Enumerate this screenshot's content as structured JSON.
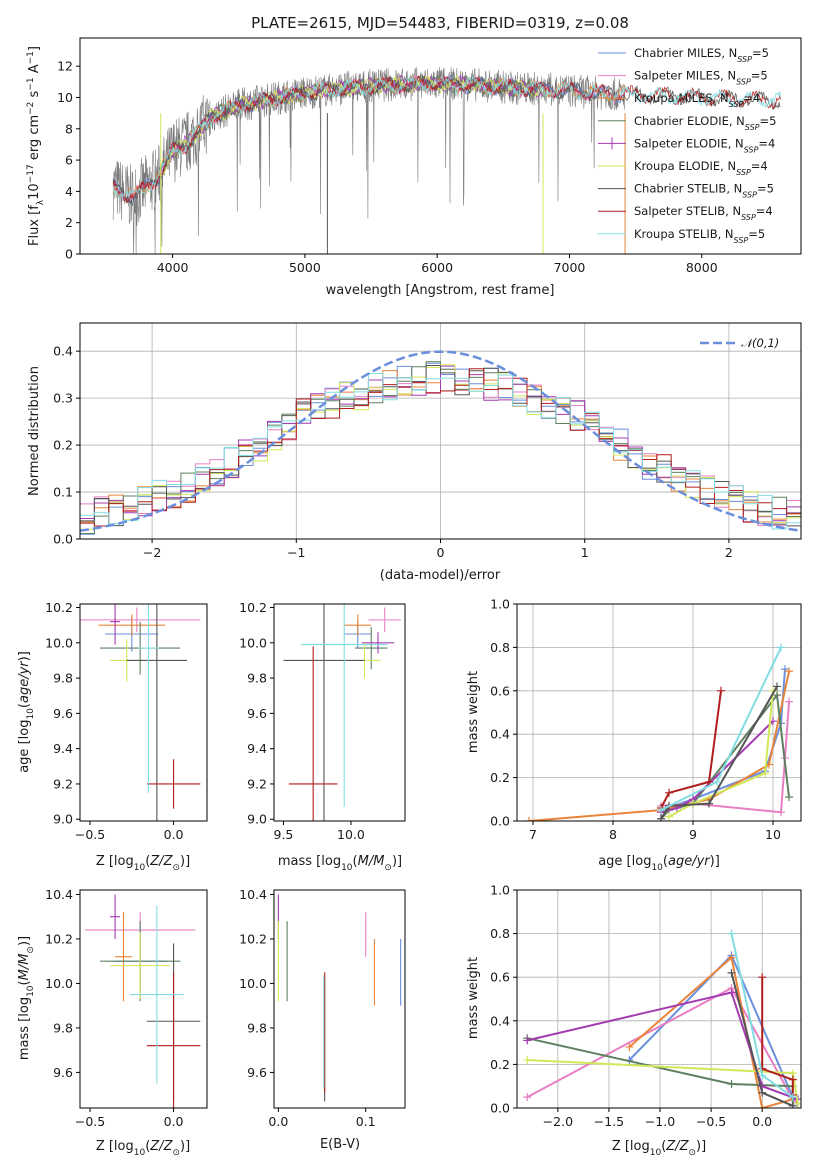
{
  "figure_title": "PLATE=2615, MJD=54483, FIBERID=0319, z=0.08",
  "colors": {
    "Chabrier MILES": "#6a8fdc",
    "Salpeter MILES": "#e87fc4",
    "Kroupa MILES": "#e8853a",
    "Chabrier ELODIE": "#5e8060",
    "Salpeter ELODIE": "#a43bb0",
    "Kroupa ELODIE": "#d2e85a",
    "Chabrier STELIB": "#555555",
    "Salpeter STELIB": "#b01e1e",
    "Kroupa STELIB": "#82dde2",
    "normal": "#6a8fdc"
  },
  "chart_data": [
    {
      "type": "line",
      "title": "PLATE=2615, MJD=54483, FIBERID=0319, z=0.08",
      "xlabel": "wavelength [Angstrom, rest frame]",
      "ylabel": "Flux [f_λ 10^-17 erg cm^-2 s^-1 A^-1]",
      "xlim": [
        3300,
        8750
      ],
      "ylim": [
        0,
        13.8
      ],
      "xticks": [
        4000,
        5000,
        6000,
        7000,
        8000
      ],
      "yticks": [
        0,
        2,
        4,
        6,
        8,
        10,
        12
      ],
      "legend_position": "right",
      "series": [
        {
          "name": "Chabrier MILES",
          "n_ssp": "5",
          "x_range": [
            3550,
            7420
          ]
        },
        {
          "name": "Salpeter MILES",
          "n_ssp": "5",
          "x_range": [
            3550,
            7420
          ]
        },
        {
          "name": "Kroupa MILES",
          "n_ssp": "4",
          "x_range": [
            3550,
            7420
          ]
        },
        {
          "name": "Chabrier ELODIE",
          "n_ssp": "5",
          "x_range": [
            3900,
            6800
          ]
        },
        {
          "name": "Salpeter ELODIE",
          "n_ssp": "4",
          "x_range": [
            3900,
            6800
          ]
        },
        {
          "name": "Kroupa ELODIE",
          "n_ssp": "4",
          "x_range": [
            3900,
            6800
          ]
        },
        {
          "name": "Chabrier STELIB",
          "n_ssp": "5",
          "x_range": [
            3550,
            8600
          ]
        },
        {
          "name": "Salpeter STELIB",
          "n_ssp": "4",
          "x_range": [
            3550,
            8600
          ]
        },
        {
          "name": "Kroupa STELIB",
          "n_ssp": "5",
          "x_range": [
            3550,
            8600
          ]
        }
      ],
      "continuum": {
        "x": [
          3550,
          3700,
          3900,
          4000,
          4100,
          4300,
          4500,
          4800,
          5000,
          5300,
          5600,
          6000,
          6300,
          6600,
          6900,
          7200,
          7400,
          7700,
          8000,
          8300,
          8600
        ],
        "y": [
          4.3,
          3.6,
          5.0,
          6.6,
          7.0,
          8.8,
          9.5,
          10.0,
          10.3,
          10.6,
          10.8,
          10.9,
          10.8,
          10.6,
          10.5,
          10.3,
          10.2,
          10.1,
          10.0,
          9.9,
          9.8
        ]
      }
    },
    {
      "type": "bar",
      "subtype": "step-histogram",
      "xlabel": "(data-model)/error",
      "ylabel": "Normed distribution",
      "xlim": [
        -2.5,
        2.5
      ],
      "ylim": [
        0,
        0.46
      ],
      "xticks": [
        -2,
        -1,
        0,
        1,
        2
      ],
      "yticks": [
        0.0,
        0.1,
        0.2,
        0.3,
        0.4
      ],
      "grid": true,
      "legend_position": "top-right",
      "reference_curve": {
        "name": "𝒩(0,1)",
        "style": "dashed",
        "mu": 0,
        "sigma": 1
      },
      "bin_edges_range": [
        -2.5,
        2.5
      ],
      "n_bins": 50,
      "histogram_centers": [
        -2.45,
        -2.35,
        -2.25,
        -2.15,
        -2.05,
        -1.95,
        -1.85,
        -1.75,
        -1.65,
        -1.55,
        -1.45,
        -1.35,
        -1.25,
        -1.15,
        -1.05,
        -0.95,
        -0.85,
        -0.75,
        -0.65,
        -0.55,
        -0.45,
        -0.35,
        -0.25,
        -0.15,
        -0.05,
        0.05,
        0.15,
        0.25,
        0.35,
        0.45,
        0.55,
        0.65,
        0.75,
        0.85,
        0.95,
        1.05,
        1.15,
        1.25,
        1.35,
        1.45,
        1.55,
        1.65,
        1.75,
        1.85,
        1.95,
        2.05,
        2.15,
        2.25,
        2.35,
        2.45
      ],
      "histogram_mean": [
        0.045,
        0.055,
        0.06,
        0.07,
        0.08,
        0.09,
        0.1,
        0.11,
        0.125,
        0.14,
        0.16,
        0.18,
        0.2,
        0.22,
        0.245,
        0.265,
        0.28,
        0.29,
        0.3,
        0.31,
        0.32,
        0.33,
        0.34,
        0.34,
        0.345,
        0.345,
        0.34,
        0.335,
        0.33,
        0.32,
        0.31,
        0.3,
        0.29,
        0.275,
        0.26,
        0.24,
        0.22,
        0.2,
        0.18,
        0.16,
        0.145,
        0.13,
        0.115,
        0.1,
        0.09,
        0.08,
        0.07,
        0.06,
        0.055,
        0.05
      ],
      "series_names": [
        "Chabrier MILES",
        "Salpeter MILES",
        "Kroupa MILES",
        "Chabrier ELODIE",
        "Salpeter ELODIE",
        "Kroupa ELODIE",
        "Chabrier STELIB",
        "Salpeter STELIB",
        "Kroupa STELIB"
      ]
    },
    {
      "type": "scatter",
      "subtype": "errorbar",
      "xlabel": "Z [log10(Z/Z⊙)]",
      "ylabel": "age  [log10(age/yr)]",
      "xlim": [
        -0.56,
        0.2
      ],
      "ylim": [
        8.99,
        10.22
      ],
      "xticks": [
        -0.5,
        0.0
      ],
      "yticks": [
        9.0,
        9.2,
        9.4,
        9.6,
        9.8,
        10.0,
        10.2
      ],
      "points": [
        {
          "series": "Chabrier MILES",
          "x": -0.25,
          "xerr": 0.16,
          "y": 10.05,
          "yerr": 0.1
        },
        {
          "series": "Salpeter MILES",
          "x": -0.22,
          "xerr": 0.38,
          "y": 10.13,
          "yerr": 0.07
        },
        {
          "series": "Kroupa MILES",
          "x": -0.25,
          "xerr": 0.2,
          "y": 10.1,
          "yerr": 0.06
        },
        {
          "series": "Chabrier ELODIE",
          "x": -0.2,
          "xerr": 0.24,
          "y": 9.97,
          "yerr": 0.15
        },
        {
          "series": "Salpeter ELODIE",
          "x": -0.35,
          "xerr": 0.03,
          "y": 10.12,
          "yerr": 0.13
        },
        {
          "series": "Kroupa ELODIE",
          "x": -0.28,
          "xerr": 0.1,
          "y": 9.9,
          "yerr": 0.12
        },
        {
          "series": "Chabrier STELIB",
          "x": -0.1,
          "xerr": 0.18,
          "y": 9.9,
          "yerr": 0.92
        },
        {
          "series": "Salpeter STELIB",
          "x": 0.0,
          "xerr": 0.16,
          "y": 9.2,
          "yerr": 0.14
        },
        {
          "series": "Kroupa STELIB",
          "x": -0.15,
          "xerr": 0.06,
          "y": 9.97,
          "yerr": 0.82
        }
      ]
    },
    {
      "type": "scatter",
      "subtype": "errorbar",
      "xlabel": "mass [log10(M/M⊙)]",
      "ylabel": "",
      "xlim": [
        9.43,
        10.4
      ],
      "ylim": [
        8.99,
        10.22
      ],
      "xticks": [
        9.5,
        10.0
      ],
      "yticks": [
        9.0,
        9.2,
        9.4,
        9.6,
        9.8,
        10.0,
        10.2
      ],
      "points": [
        {
          "series": "Chabrier MILES",
          "x": 10.05,
          "xerr": 0.1,
          "y": 10.05,
          "yerr": 0.08
        },
        {
          "series": "Salpeter MILES",
          "x": 10.25,
          "xerr": 0.12,
          "y": 10.13,
          "yerr": 0.07
        },
        {
          "series": "Kroupa MILES",
          "x": 10.05,
          "xerr": 0.1,
          "y": 10.1,
          "yerr": 0.06
        },
        {
          "series": "Chabrier ELODIE",
          "x": 10.15,
          "xerr": 0.12,
          "y": 9.97,
          "yerr": 0.12
        },
        {
          "series": "Salpeter ELODIE",
          "x": 10.2,
          "xerr": 0.12,
          "y": 10.0,
          "yerr": 0.06
        },
        {
          "series": "Kroupa ELODIE",
          "x": 10.1,
          "xerr": 0.12,
          "y": 9.9,
          "yerr": 0.1
        },
        {
          "series": "Chabrier STELIB",
          "x": 9.8,
          "xerr": 0.3,
          "y": 9.9,
          "yerr": 0.92
        },
        {
          "series": "Salpeter STELIB",
          "x": 9.72,
          "xerr": 0.18,
          "y": 9.2,
          "yerr": 0.78
        },
        {
          "series": "Kroupa STELIB",
          "x": 9.95,
          "xerr": 0.32,
          "y": 9.99,
          "yerr": 0.92
        }
      ]
    },
    {
      "type": "line",
      "subtype": "cumulative",
      "xlabel": "age  [log10(age/yr)]",
      "ylabel": "mass weight",
      "xlim": [
        6.8,
        10.35
      ],
      "ylim": [
        0,
        1.0
      ],
      "xticks": [
        7,
        8,
        9,
        10
      ],
      "yticks": [
        0.0,
        0.2,
        0.4,
        0.6,
        0.8,
        1.0
      ],
      "grid": true,
      "series": [
        {
          "name": "Chabrier MILES",
          "x": [
            8.6,
            9.0,
            9.9,
            10.1,
            10.15
          ],
          "y": [
            0.05,
            0.1,
            0.23,
            0.45,
            0.7
          ]
        },
        {
          "name": "Salpeter MILES",
          "x": [
            8.6,
            9.0,
            10.1,
            10.15,
            10.2
          ],
          "y": [
            0.07,
            0.08,
            0.04,
            0.29,
            0.55
          ]
        },
        {
          "name": "Kroupa MILES",
          "x": [
            6.95,
            8.6,
            9.2,
            9.95,
            10.2
          ],
          "y": [
            0.0,
            0.05,
            0.1,
            0.26,
            0.69
          ]
        },
        {
          "name": "Chabrier ELODIE",
          "x": [
            8.6,
            8.7,
            9.0,
            10.05,
            10.2
          ],
          "y": [
            0.01,
            0.05,
            0.08,
            0.58,
            0.11
          ]
        },
        {
          "name": "Salpeter ELODIE",
          "x": [
            8.6,
            8.8,
            9.0,
            10.0
          ],
          "y": [
            0.04,
            0.06,
            0.1,
            0.46
          ]
        },
        {
          "name": "Kroupa ELODIE",
          "x": [
            8.7,
            9.0,
            9.9,
            10.0
          ],
          "y": [
            0.02,
            0.08,
            0.22,
            0.6
          ]
        },
        {
          "name": "Chabrier STELIB",
          "x": [
            8.6,
            8.7,
            9.2,
            10.05
          ],
          "y": [
            0.01,
            0.07,
            0.08,
            0.62
          ]
        },
        {
          "name": "Salpeter STELIB",
          "x": [
            8.6,
            8.7,
            9.2,
            9.35
          ],
          "y": [
            0.06,
            0.13,
            0.18,
            0.6
          ]
        },
        {
          "name": "Kroupa STELIB",
          "x": [
            8.6,
            9.3,
            10.1
          ],
          "y": [
            0.05,
            0.18,
            0.8
          ]
        }
      ]
    },
    {
      "type": "scatter",
      "subtype": "errorbar",
      "xlabel": "Z [log10(Z/Z⊙)]",
      "ylabel": "mass [log10(M/M⊙)]",
      "xlim": [
        -0.56,
        0.2
      ],
      "ylim": [
        9.44,
        10.42
      ],
      "xticks": [
        -0.5,
        0.0
      ],
      "yticks": [
        9.6,
        9.8,
        10.0,
        10.2,
        10.4
      ],
      "points": [
        {
          "series": "Chabrier MILES",
          "x": -0.2,
          "xerr": 0.16,
          "y": 10.1,
          "yerr": 0.12
        },
        {
          "series": "Salpeter MILES",
          "x": -0.2,
          "xerr": 0.33,
          "y": 10.24,
          "yerr": 0.08
        },
        {
          "series": "Kroupa MILES",
          "x": -0.3,
          "xerr": 0.05,
          "y": 10.12,
          "yerr": 0.2
        },
        {
          "series": "Chabrier ELODIE",
          "x": -0.2,
          "xerr": 0.24,
          "y": 10.1,
          "yerr": 0.18
        },
        {
          "series": "Salpeter ELODIE",
          "x": -0.35,
          "xerr": 0.03,
          "y": 10.3,
          "yerr": 0.1
        },
        {
          "series": "Kroupa ELODIE",
          "x": -0.2,
          "xerr": 0.18,
          "y": 10.08,
          "yerr": 0.15
        },
        {
          "series": "Chabrier STELIB",
          "x": 0.0,
          "xerr": 0.16,
          "y": 9.83,
          "yerr": 0.35
        },
        {
          "series": "Salpeter STELIB",
          "x": 0.0,
          "xerr": 0.16,
          "y": 9.72,
          "yerr": 0.33
        },
        {
          "series": "Kroupa STELIB",
          "x": -0.1,
          "xerr": 0.16,
          "y": 9.95,
          "yerr": 0.4
        }
      ]
    },
    {
      "type": "scatter",
      "subtype": "errorbar",
      "xlabel": "E(B-V)",
      "ylabel": "",
      "xlim": [
        -0.005,
        0.145
      ],
      "ylim": [
        9.44,
        10.42
      ],
      "xticks": [
        0.0,
        0.1
      ],
      "yticks": [
        9.6,
        9.8,
        10.0,
        10.2,
        10.4
      ],
      "points": [
        {
          "series": "Chabrier MILES",
          "x": 0.14,
          "y": 10.05,
          "yerr": 0.15
        },
        {
          "series": "Salpeter MILES",
          "x": 0.1,
          "y": 10.22,
          "yerr": 0.1
        },
        {
          "series": "Kroupa MILES",
          "x": 0.11,
          "y": 10.05,
          "yerr": 0.15
        },
        {
          "series": "Chabrier ELODIE",
          "x": 0.01,
          "y": 10.1,
          "yerr": 0.18
        },
        {
          "series": "Salpeter ELODIE",
          "x": 0.0,
          "y": 10.3,
          "yerr": 0.1
        },
        {
          "series": "Kroupa ELODIE",
          "x": 0.0,
          "y": 10.1,
          "yerr": 0.18
        },
        {
          "series": "Chabrier STELIB",
          "x": 0.053,
          "y": 9.75,
          "yerr": 0.28
        },
        {
          "series": "Salpeter STELIB",
          "x": 0.053,
          "y": 9.78,
          "yerr": 0.27
        },
        {
          "series": "Kroupa STELIB",
          "x": 0.052,
          "y": 9.78,
          "yerr": 0.25
        }
      ]
    },
    {
      "type": "line",
      "subtype": "cumulative",
      "xlabel": "Z [log10(Z/Z⊙)]",
      "ylabel": "mass weight",
      "xlim": [
        -2.4,
        0.38
      ],
      "ylim": [
        0,
        1.0
      ],
      "xticks": [
        -2.0,
        -1.5,
        -1.0,
        -0.5,
        0.0
      ],
      "yticks": [
        0.0,
        0.2,
        0.4,
        0.6,
        0.8,
        1.0
      ],
      "grid": true,
      "series": [
        {
          "name": "Chabrier MILES",
          "x": [
            -1.3,
            -0.3,
            0.3,
            0.35
          ],
          "y": [
            0.22,
            0.7,
            0.05,
            0.02
          ]
        },
        {
          "name": "Salpeter MILES",
          "x": [
            -2.3,
            -0.3,
            0.3,
            0.35
          ],
          "y": [
            0.05,
            0.55,
            0.04,
            0.02
          ]
        },
        {
          "name": "Kroupa MILES",
          "x": [
            -1.3,
            -0.3,
            0.0,
            0.3
          ],
          "y": [
            0.28,
            0.69,
            0.0,
            0.04
          ]
        },
        {
          "name": "Chabrier ELODIE",
          "x": [
            -2.3,
            -0.3,
            0.3,
            0.3
          ],
          "y": [
            0.32,
            0.11,
            0.1,
            0.01
          ]
        },
        {
          "name": "Salpeter ELODIE",
          "x": [
            -2.3,
            -0.3,
            0.0,
            0.35
          ],
          "y": [
            0.31,
            0.53,
            0.1,
            0.04
          ]
        },
        {
          "name": "Kroupa ELODIE",
          "x": [
            -2.3,
            0.3,
            0.35
          ],
          "y": [
            0.22,
            0.16,
            0.02
          ]
        },
        {
          "name": "Chabrier STELIB",
          "x": [
            -0.3,
            0.0,
            0.3
          ],
          "y": [
            0.62,
            0.07,
            0.01
          ]
        },
        {
          "name": "Salpeter STELIB",
          "x": [
            0.0,
            0.0,
            0.3,
            0.3
          ],
          "y": [
            0.6,
            0.18,
            0.13,
            0.06
          ]
        },
        {
          "name": "Kroupa STELIB",
          "x": [
            -0.3,
            0.0,
            0.3
          ],
          "y": [
            0.8,
            0.15,
            0.05
          ]
        }
      ]
    }
  ]
}
